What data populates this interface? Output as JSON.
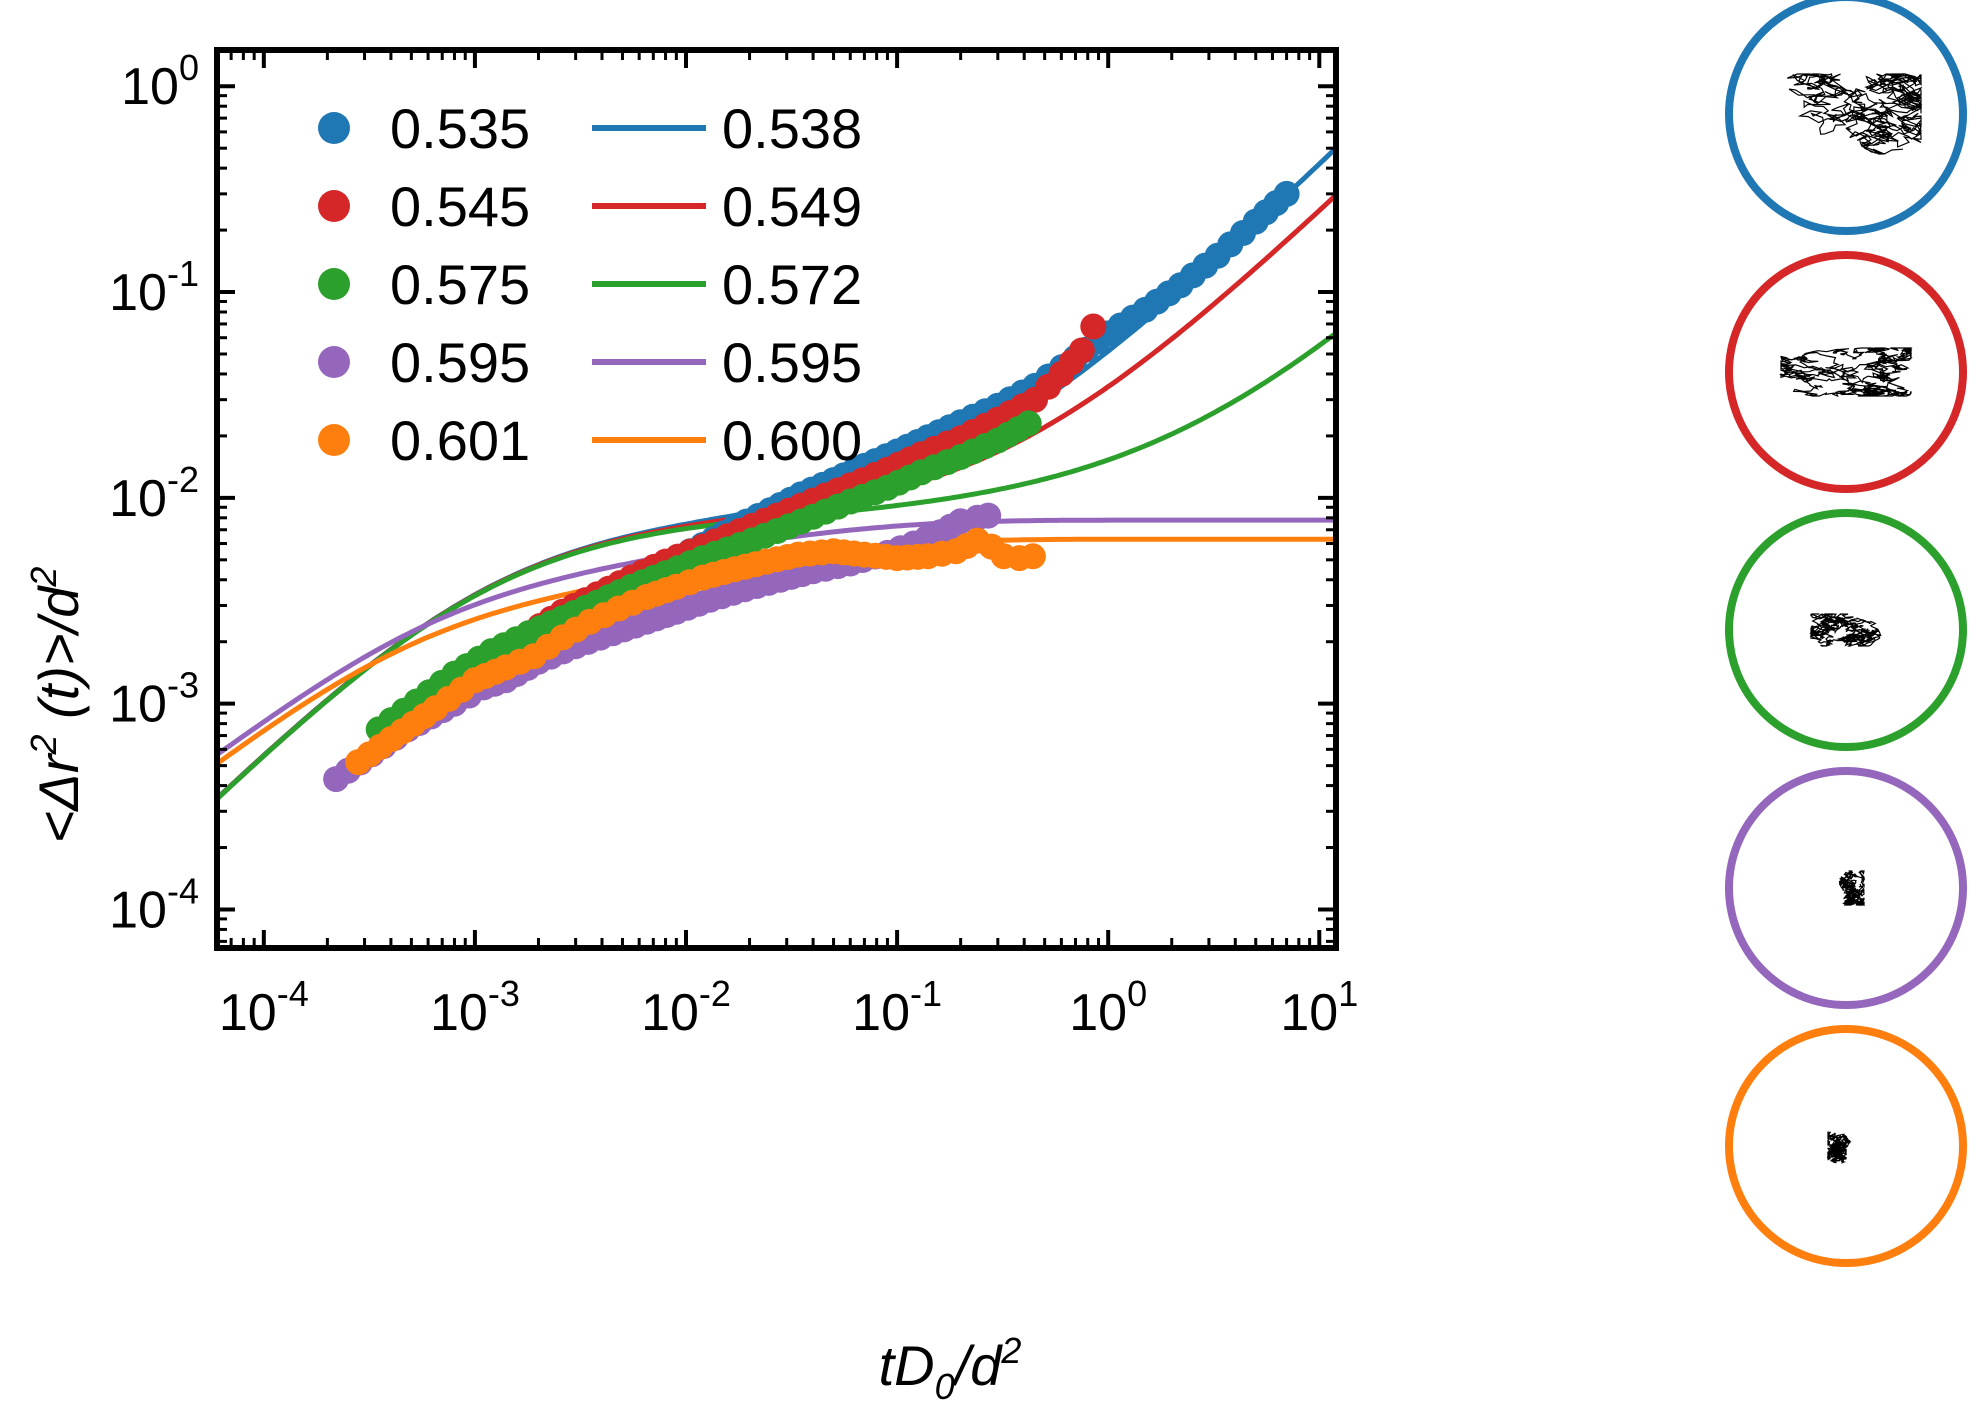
{
  "chart_data": {
    "type": "scatter",
    "title": "",
    "xlabel": "tD0/d2",
    "ylabel": "<Δr2 (t)>/d2",
    "x_scale": "log",
    "y_scale": "log",
    "xlim": [
      6e-05,
      12
    ],
    "ylim": [
      6.5e-05,
      1.5
    ],
    "x_ticks": [
      {
        "value": 0.0001,
        "base": "10",
        "exp": "-4"
      },
      {
        "value": 0.001,
        "base": "10",
        "exp": "-3"
      },
      {
        "value": 0.01,
        "base": "10",
        "exp": "-2"
      },
      {
        "value": 0.1,
        "base": "10",
        "exp": "-1"
      },
      {
        "value": 1,
        "base": "10",
        "exp": "0"
      },
      {
        "value": 10,
        "base": "10",
        "exp": "1"
      }
    ],
    "y_ticks": [
      {
        "value": 0.0001,
        "base": "10",
        "exp": "-4"
      },
      {
        "value": 0.001,
        "base": "10",
        "exp": "-3"
      },
      {
        "value": 0.01,
        "base": "10",
        "exp": "-2"
      },
      {
        "value": 0.1,
        "base": "10",
        "exp": "-1"
      },
      {
        "value": 1,
        "base": "10",
        "exp": "0"
      }
    ],
    "marker_series": [
      {
        "name": "0.535",
        "color": "#1f77b4",
        "x": [
          0.0055,
          0.008,
          0.012,
          0.017,
          0.025,
          0.035,
          0.05,
          0.07,
          0.1,
          0.14,
          0.2,
          0.3,
          0.45,
          0.7,
          1.0,
          1.5,
          2.2,
          3.3,
          5.0,
          7.0
        ],
        "y": [
          0.0036,
          0.0048,
          0.0059,
          0.0072,
          0.0087,
          0.0104,
          0.0122,
          0.0143,
          0.0168,
          0.0197,
          0.0233,
          0.028,
          0.035,
          0.048,
          0.063,
          0.082,
          0.108,
          0.15,
          0.22,
          0.3
        ]
      },
      {
        "name": "0.545",
        "color": "#d62728",
        "x": [
          0.0008,
          0.0012,
          0.0018,
          0.0026,
          0.0038,
          0.0055,
          0.008,
          0.012,
          0.018,
          0.027,
          0.04,
          0.06,
          0.09,
          0.13,
          0.2,
          0.3,
          0.45,
          0.6,
          0.75,
          0.85
        ],
        "y": [
          0.0012,
          0.0017,
          0.0022,
          0.0028,
          0.0034,
          0.0041,
          0.0049,
          0.0058,
          0.0069,
          0.0082,
          0.0097,
          0.0115,
          0.0137,
          0.0163,
          0.0195,
          0.024,
          0.03,
          0.04,
          0.052,
          0.068
        ]
      },
      {
        "name": "0.575",
        "color": "#2ca02c",
        "x": [
          0.00035,
          0.0008,
          0.0012,
          0.0018,
          0.0026,
          0.0038,
          0.0055,
          0.008,
          0.012,
          0.018,
          0.027,
          0.04,
          0.06,
          0.09,
          0.13,
          0.2,
          0.3,
          0.42
        ],
        "y": [
          0.00075,
          0.0014,
          0.0018,
          0.0022,
          0.0026,
          0.0031,
          0.0037,
          0.0043,
          0.0051,
          0.0059,
          0.0069,
          0.0081,
          0.0096,
          0.0112,
          0.0133,
          0.0158,
          0.019,
          0.023
        ]
      },
      {
        "name": "0.595",
        "color": "#9467bd",
        "x": [
          0.00022,
          0.00048,
          0.0008,
          0.0011,
          0.0014,
          0.002,
          0.003,
          0.0045,
          0.0065,
          0.009,
          0.013,
          0.019,
          0.028,
          0.04,
          0.06,
          0.09,
          0.12,
          0.16,
          0.2,
          0.24,
          0.27
        ],
        "y": [
          0.00043,
          0.00075,
          0.001,
          0.0012,
          0.0013,
          0.0016,
          0.0019,
          0.0022,
          0.0025,
          0.0028,
          0.0032,
          0.0036,
          0.004,
          0.0044,
          0.0048,
          0.0054,
          0.006,
          0.0068,
          0.0077,
          0.008,
          0.0082
        ]
      },
      {
        "name": "0.601",
        "color": "#ff7f0e",
        "x": [
          0.00028,
          0.00065,
          0.001,
          0.0014,
          0.0019,
          0.0026,
          0.0035,
          0.0048,
          0.0065,
          0.009,
          0.012,
          0.017,
          0.024,
          0.034,
          0.05,
          0.07,
          0.1,
          0.14,
          0.19,
          0.24,
          0.28,
          0.32,
          0.38,
          0.44
        ],
        "y": [
          0.00052,
          0.00095,
          0.0013,
          0.0015,
          0.0017,
          0.0021,
          0.0025,
          0.0029,
          0.0033,
          0.0037,
          0.0041,
          0.0045,
          0.0049,
          0.0053,
          0.0055,
          0.0053,
          0.0051,
          0.0052,
          0.0055,
          0.0062,
          0.0058,
          0.0052,
          0.0051,
          0.0052
        ]
      }
    ],
    "line_series": [
      {
        "name": "0.538",
        "color": "#1f77b4",
        "plateau": null,
        "diffusion": 0.04
      },
      {
        "name": "0.549",
        "color": "#d62728",
        "plateau": null,
        "diffusion": 0.023
      },
      {
        "name": "0.572",
        "color": "#2ca02c",
        "plateau": null,
        "diffusion": 0.0036
      },
      {
        "name": "0.595",
        "color": "#9467bd",
        "plateau": 0.0078,
        "diffusion": 0
      },
      {
        "name": "0.600",
        "color": "#ff7f0e",
        "plateau": 0.0063,
        "diffusion": 0
      }
    ],
    "legend": {
      "placement": "top-left",
      "marker_labels": [
        "0.535",
        "0.545",
        "0.575",
        "0.595",
        "0.601"
      ],
      "line_labels": [
        "0.538",
        "0.549",
        "0.572",
        "0.595",
        "0.600"
      ]
    },
    "trajectory_insets": [
      {
        "color": "#1f77b4",
        "spread": "large"
      },
      {
        "color": "#d62728",
        "spread": "medium"
      },
      {
        "color": "#2ca02c",
        "spread": "small"
      },
      {
        "color": "#9467bd",
        "spread": "tiny"
      },
      {
        "color": "#ff7f0e",
        "spread": "tiny"
      }
    ]
  }
}
